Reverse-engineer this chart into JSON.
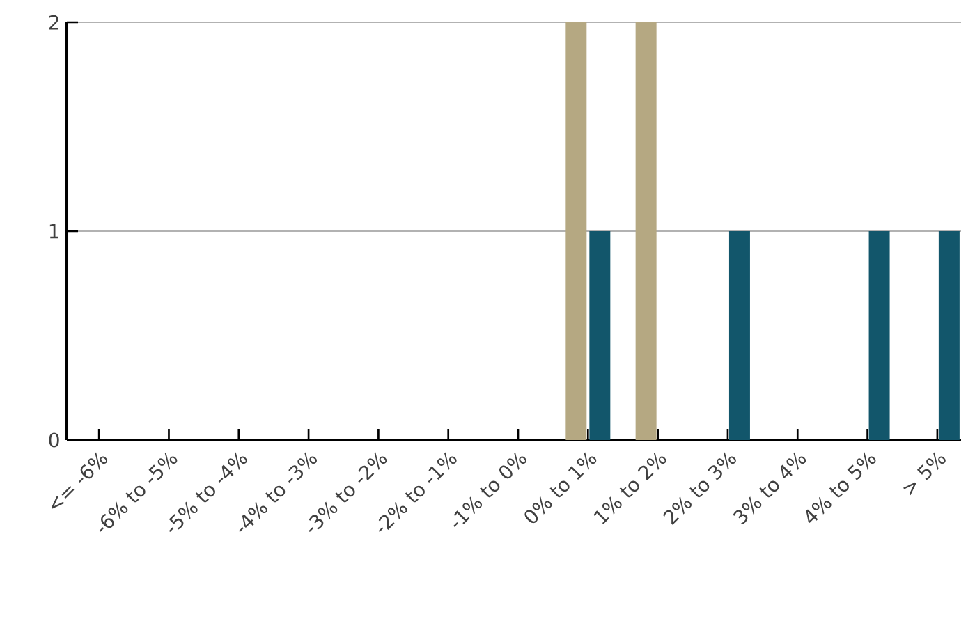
{
  "chart_data": {
    "type": "bar",
    "categories": [
      "<= -6%",
      "-6% to -5%",
      "-5% to -4%",
      "-4% to -3%",
      "-3% to -2%",
      "-2% to -1%",
      "-1% to 0%",
      "0% to 1%",
      "1% to 2%",
      "2% to 3%",
      "3% to 4%",
      "4% to 5%",
      "> 5%"
    ],
    "series": [
      {
        "color": "#b5a882",
        "values": [
          0,
          0,
          0,
          0,
          0,
          0,
          0,
          2,
          2,
          0,
          0,
          0,
          0
        ]
      },
      {
        "color": "#12566b",
        "values": [
          0,
          0,
          0,
          0,
          0,
          0,
          0,
          1,
          0,
          1,
          0,
          1,
          1
        ]
      }
    ],
    "ylim": [
      0,
      2
    ],
    "yticks": [
      0,
      1,
      2
    ],
    "grid": "y"
  }
}
